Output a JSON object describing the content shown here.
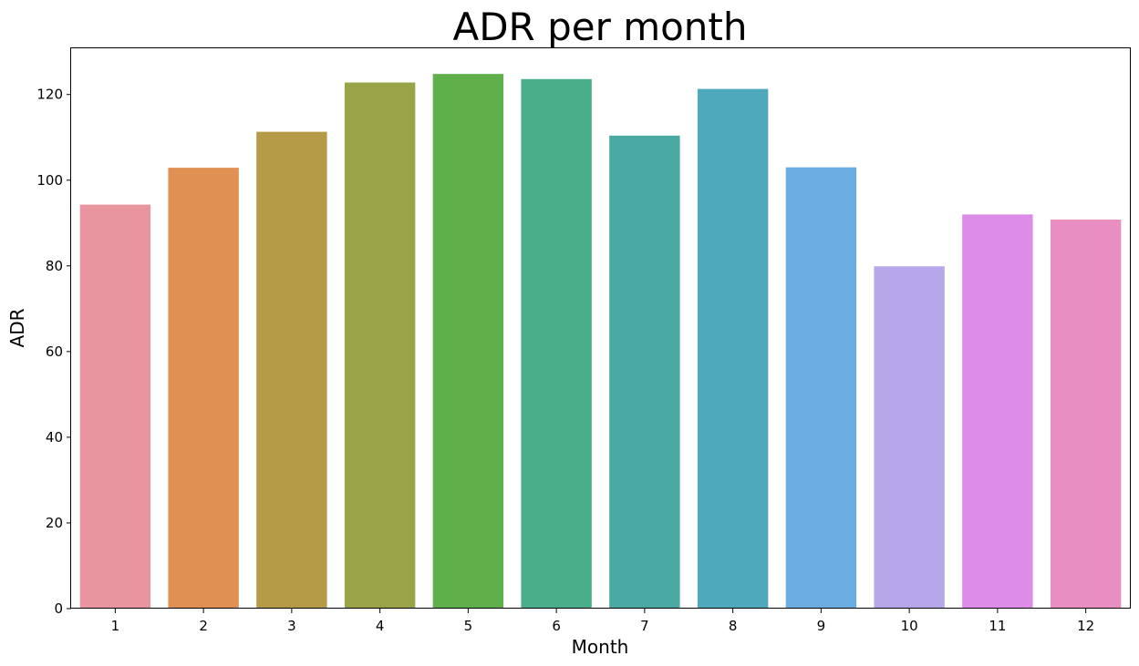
{
  "chart_data": {
    "type": "bar",
    "title": "ADR per month",
    "xlabel": "Month",
    "ylabel": "ADR",
    "categories": [
      "1",
      "2",
      "3",
      "4",
      "5",
      "6",
      "7",
      "8",
      "9",
      "10",
      "11",
      "12"
    ],
    "values": [
      94.3,
      102.9,
      111.3,
      122.8,
      124.8,
      123.6,
      110.4,
      121.3,
      103.0,
      79.9,
      92.0,
      90.8
    ],
    "ylim": [
      0,
      131
    ],
    "yticks": [
      0,
      20,
      40,
      60,
      80,
      100,
      120
    ],
    "grid": false,
    "colors": [
      "#E8959F",
      "#E09052",
      "#B59B48",
      "#98A447",
      "#5FAF4A",
      "#4BAE8A",
      "#4AA9A3",
      "#4FA9BD",
      "#6CADE1",
      "#B6A7EA",
      "#DD8CE8",
      "#E88EC3"
    ]
  }
}
